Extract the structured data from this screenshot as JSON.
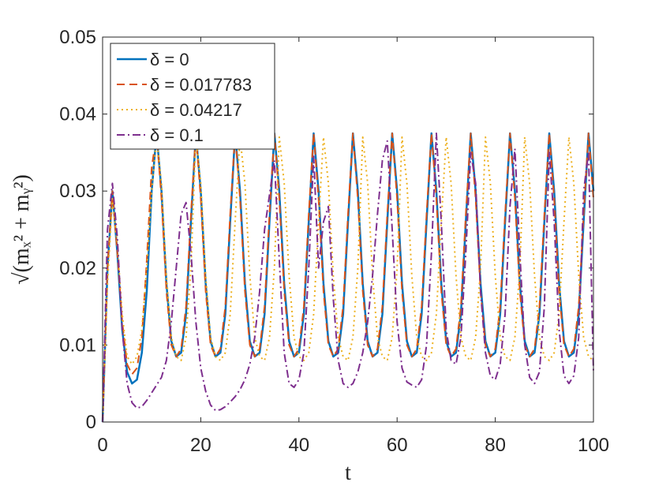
{
  "chart_data": {
    "type": "line",
    "x_label": "t",
    "y_label": "√(mₓ² + mᵧ²)",
    "x": [
      0,
      1,
      2,
      3,
      4,
      5,
      6,
      7,
      8,
      9,
      10,
      11,
      12,
      13,
      14,
      15,
      16,
      17,
      18,
      19,
      20,
      21,
      22,
      23,
      24,
      25,
      26,
      27,
      28,
      29,
      30,
      31,
      32,
      33,
      34,
      35,
      36,
      37,
      38,
      39,
      40,
      41,
      42,
      43,
      44,
      45,
      46,
      47,
      48,
      49,
      50,
      51,
      52,
      53,
      54,
      55,
      56,
      57,
      58,
      59,
      60,
      61,
      62,
      63,
      64,
      65,
      66,
      67,
      68,
      69,
      70,
      71,
      72,
      73,
      74,
      75,
      76,
      77,
      78,
      79,
      80,
      81,
      82,
      83,
      84,
      85,
      86,
      87,
      88,
      89,
      90,
      91,
      92,
      93,
      94,
      95,
      96,
      97,
      98,
      99,
      100
    ],
    "series": [
      {
        "name": "δ = 0",
        "color": "#0072bd",
        "dash": "solid",
        "width": 2.5,
        "values": [
          0,
          0.02,
          0.03,
          0.022,
          0.012,
          0.0065,
          0.005,
          0.0055,
          0.009,
          0.017,
          0.03,
          0.0375,
          0.03,
          0.018,
          0.0105,
          0.0085,
          0.009,
          0.014,
          0.026,
          0.0375,
          0.03,
          0.018,
          0.0105,
          0.0085,
          0.009,
          0.014,
          0.026,
          0.0375,
          0.03,
          0.018,
          0.0105,
          0.0085,
          0.009,
          0.014,
          0.026,
          0.0375,
          0.03,
          0.018,
          0.0105,
          0.0085,
          0.009,
          0.014,
          0.026,
          0.0375,
          0.03,
          0.018,
          0.0105,
          0.0085,
          0.009,
          0.014,
          0.026,
          0.0375,
          0.03,
          0.018,
          0.0105,
          0.0085,
          0.009,
          0.014,
          0.026,
          0.0375,
          0.03,
          0.018,
          0.0105,
          0.0085,
          0.009,
          0.014,
          0.026,
          0.0375,
          0.03,
          0.018,
          0.0105,
          0.0085,
          0.009,
          0.014,
          0.026,
          0.0375,
          0.03,
          0.018,
          0.0105,
          0.0085,
          0.009,
          0.014,
          0.026,
          0.0375,
          0.03,
          0.018,
          0.0105,
          0.0085,
          0.009,
          0.014,
          0.026,
          0.0375,
          0.03,
          0.018,
          0.0105,
          0.0085,
          0.009,
          0.014,
          0.026,
          0.0375,
          0.03
        ]
      },
      {
        "name": "δ = 0.017783",
        "color": "#d95319",
        "dash": "dashed",
        "width": 2,
        "values": [
          0,
          0.02,
          0.03,
          0.022,
          0.013,
          0.0075,
          0.0062,
          0.007,
          0.011,
          0.021,
          0.033,
          0.0375,
          0.029,
          0.017,
          0.01,
          0.0085,
          0.0095,
          0.015,
          0.027,
          0.0375,
          0.029,
          0.017,
          0.01,
          0.0085,
          0.0095,
          0.015,
          0.027,
          0.0375,
          0.029,
          0.017,
          0.01,
          0.0085,
          0.0095,
          0.015,
          0.027,
          0.0375,
          0.029,
          0.017,
          0.01,
          0.0085,
          0.0095,
          0.015,
          0.027,
          0.0375,
          0.029,
          0.017,
          0.01,
          0.0085,
          0.0095,
          0.015,
          0.027,
          0.0375,
          0.029,
          0.017,
          0.01,
          0.0085,
          0.0095,
          0.015,
          0.027,
          0.0375,
          0.029,
          0.017,
          0.01,
          0.0085,
          0.0095,
          0.015,
          0.027,
          0.0375,
          0.029,
          0.017,
          0.01,
          0.0085,
          0.0095,
          0.015,
          0.027,
          0.0375,
          0.029,
          0.017,
          0.01,
          0.0085,
          0.0095,
          0.015,
          0.027,
          0.0375,
          0.029,
          0.017,
          0.01,
          0.0085,
          0.0095,
          0.015,
          0.027,
          0.0375,
          0.029,
          0.017,
          0.01,
          0.0085,
          0.0095,
          0.015,
          0.027,
          0.0375,
          0.029
        ]
      },
      {
        "name": "δ = 0.04217",
        "color": "#edb120",
        "dash": "dotted",
        "width": 2,
        "values": [
          0,
          0.018,
          0.029,
          0.023,
          0.014,
          0.0085,
          0.0075,
          0.0085,
          0.012,
          0.02,
          0.03,
          0.037,
          0.031,
          0.019,
          0.011,
          0.0085,
          0.008,
          0.011,
          0.02,
          0.037,
          0.031,
          0.019,
          0.011,
          0.0085,
          0.008,
          0.009,
          0.014,
          0.026,
          0.037,
          0.031,
          0.019,
          0.011,
          0.0085,
          0.008,
          0.011,
          0.02,
          0.037,
          0.031,
          0.019,
          0.011,
          0.0085,
          0.008,
          0.009,
          0.014,
          0.026,
          0.037,
          0.031,
          0.019,
          0.011,
          0.0085,
          0.008,
          0.011,
          0.02,
          0.037,
          0.031,
          0.019,
          0.011,
          0.0085,
          0.008,
          0.011,
          0.02,
          0.037,
          0.031,
          0.019,
          0.011,
          0.0085,
          0.008,
          0.009,
          0.014,
          0.026,
          0.037,
          0.031,
          0.019,
          0.011,
          0.0085,
          0.008,
          0.011,
          0.02,
          0.037,
          0.031,
          0.019,
          0.011,
          0.0085,
          0.008,
          0.011,
          0.02,
          0.037,
          0.031,
          0.019,
          0.011,
          0.0085,
          0.008,
          0.009,
          0.014,
          0.026,
          0.037,
          0.031,
          0.019,
          0.011,
          0.0085,
          0.008
        ]
      },
      {
        "name": "δ = 0.1",
        "color": "#7e2f8e",
        "dash": "dashdot",
        "width": 2,
        "values": [
          0,
          0.025,
          0.031,
          0.024,
          0.012,
          0.005,
          0.0025,
          0.0018,
          0.002,
          0.0028,
          0.0038,
          0.0048,
          0.0058,
          0.008,
          0.013,
          0.02,
          0.027,
          0.0285,
          0.022,
          0.013,
          0.007,
          0.004,
          0.0022,
          0.0015,
          0.0016,
          0.002,
          0.0026,
          0.0033,
          0.0042,
          0.0055,
          0.0075,
          0.011,
          0.017,
          0.025,
          0.0295,
          0.034,
          0.021,
          0.009,
          0.005,
          0.0045,
          0.0055,
          0.009,
          0.02,
          0.0345,
          0.02,
          0.026,
          0.028,
          0.016,
          0.008,
          0.005,
          0.0045,
          0.005,
          0.0065,
          0.009,
          0.013,
          0.019,
          0.027,
          0.034,
          0.0365,
          0.025,
          0.013,
          0.007,
          0.0052,
          0.0048,
          0.0045,
          0.0055,
          0.01,
          0.022,
          0.0375,
          0.026,
          0.012,
          0.008,
          0.0075,
          0.011,
          0.022,
          0.035,
          0.031,
          0.017,
          0.009,
          0.006,
          0.0055,
          0.0075,
          0.014,
          0.028,
          0.0355,
          0.022,
          0.01,
          0.0058,
          0.005,
          0.0065,
          0.015,
          0.035,
          0.026,
          0.012,
          0.006,
          0.005,
          0.006,
          0.011,
          0.03,
          0.035,
          0.0065
        ]
      }
    ],
    "xlim": [
      0,
      100
    ],
    "xticks": [
      0,
      20,
      40,
      60,
      80,
      100
    ],
    "ylim": [
      0,
      0.05
    ],
    "yticks": [
      0,
      0.01,
      0.02,
      0.03,
      0.04,
      0.05
    ],
    "legend": "upper left"
  }
}
